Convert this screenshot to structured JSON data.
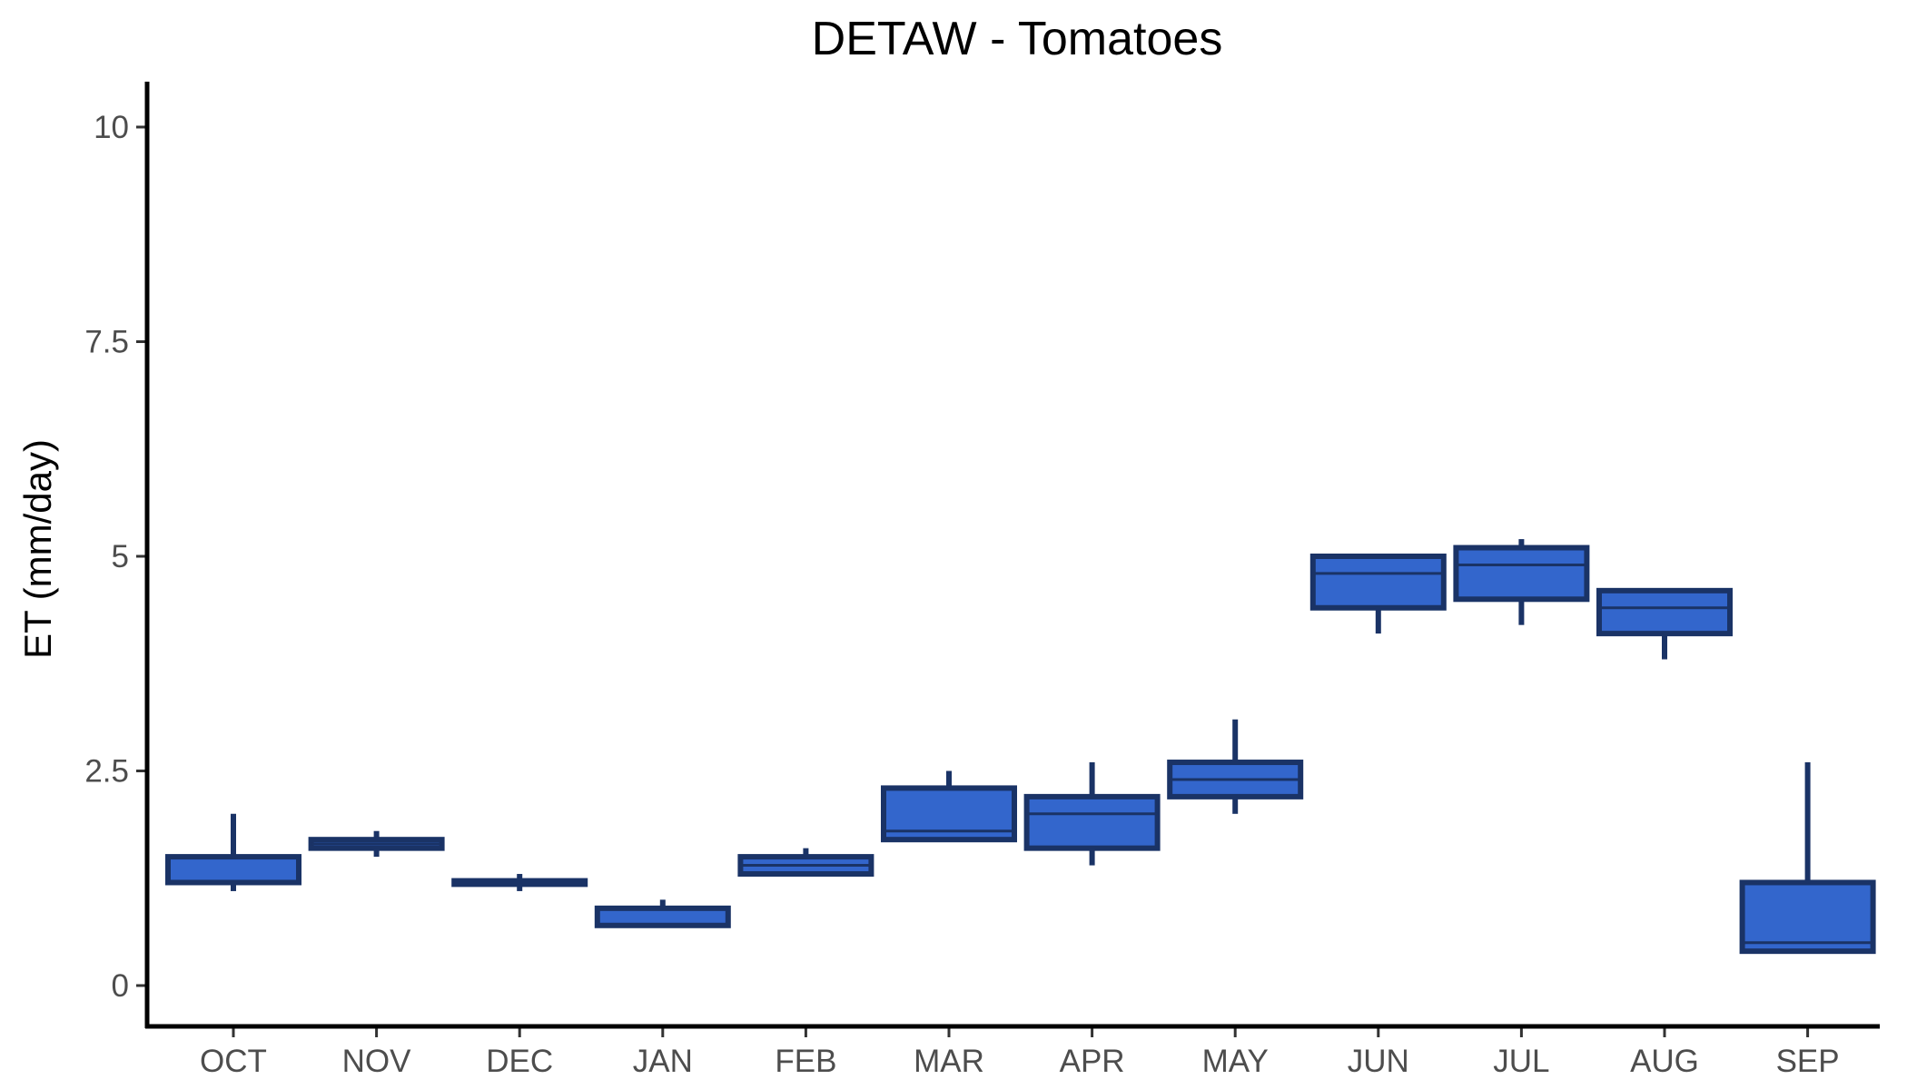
{
  "chart_data": {
    "type": "box",
    "title": "DETAW - Tomatoes",
    "xlabel": "",
    "ylabel": "ET (mm/day)",
    "ylim": [
      -0.45,
      10.5
    ],
    "yticks": [
      0,
      2.5,
      5,
      7.5,
      10
    ],
    "ytick_labels": [
      "0",
      "2.5",
      "5",
      "7.5",
      "10"
    ],
    "grid": false,
    "legend": "none",
    "colors": {
      "box_fill": "#3366cc",
      "box_stroke": "#1a3366",
      "axis": "#000000"
    },
    "categories": [
      "OCT",
      "NOV",
      "DEC",
      "JAN",
      "FEB",
      "MAR",
      "APR",
      "MAY",
      "JUN",
      "JUL",
      "AUG",
      "SEP"
    ],
    "boxes": [
      {
        "category": "OCT",
        "min": 1.1,
        "q1": 1.2,
        "median": 1.2,
        "q3": 1.5,
        "max": 2.0
      },
      {
        "category": "NOV",
        "min": 1.5,
        "q1": 1.6,
        "median": 1.65,
        "q3": 1.7,
        "max": 1.8
      },
      {
        "category": "DEC",
        "min": 1.1,
        "q1": 1.18,
        "median": 1.2,
        "q3": 1.22,
        "max": 1.3
      },
      {
        "category": "JAN",
        "min": 0.7,
        "q1": 0.7,
        "median": 0.7,
        "q3": 0.9,
        "max": 1.0
      },
      {
        "category": "FEB",
        "min": 1.3,
        "q1": 1.3,
        "median": 1.4,
        "q3": 1.5,
        "max": 1.6
      },
      {
        "category": "MAR",
        "min": 1.7,
        "q1": 1.7,
        "median": 1.8,
        "q3": 2.3,
        "max": 2.5
      },
      {
        "category": "APR",
        "min": 1.4,
        "q1": 1.6,
        "median": 2.0,
        "q3": 2.2,
        "max": 2.6
      },
      {
        "category": "MAY",
        "min": 2.0,
        "q1": 2.2,
        "median": 2.4,
        "q3": 2.6,
        "max": 3.1
      },
      {
        "category": "JUN",
        "min": 4.1,
        "q1": 4.4,
        "median": 4.8,
        "q3": 5.0,
        "max": 5.0
      },
      {
        "category": "JUL",
        "min": 4.2,
        "q1": 4.5,
        "median": 4.9,
        "q3": 5.1,
        "max": 5.2
      },
      {
        "category": "AUG",
        "min": 3.8,
        "q1": 4.1,
        "median": 4.4,
        "q3": 4.6,
        "max": 4.6
      },
      {
        "category": "SEP",
        "min": 0.4,
        "q1": 0.4,
        "median": 0.5,
        "q3": 1.2,
        "max": 2.6
      }
    ]
  }
}
